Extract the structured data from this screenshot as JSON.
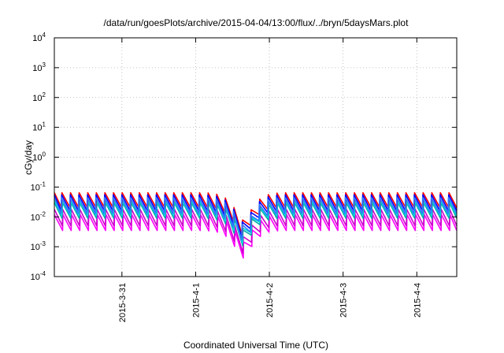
{
  "chart_data": {
    "type": "line",
    "title": "/data/run/goesPlots/archive/2015-04-04/13:00/flux/../bryn/5daysMars.plot",
    "xlabel": "Coordinated Universal Time (UTC)",
    "ylabel": "cGy/day",
    "yscale": "log",
    "ylim": [
      0.0001,
      10000
    ],
    "y_ticks": [
      {
        "base": "10",
        "exp": "-4",
        "value": 0.0001
      },
      {
        "base": "10",
        "exp": "-3",
        "value": 0.001
      },
      {
        "base": "10",
        "exp": "-2",
        "value": 0.01
      },
      {
        "base": "10",
        "exp": "-1",
        "value": 0.1
      },
      {
        "base": "10",
        "exp": "0",
        "value": 1
      },
      {
        "base": "10",
        "exp": "1",
        "value": 10
      },
      {
        "base": "10",
        "exp": "2",
        "value": 100
      },
      {
        "base": "10",
        "exp": "3",
        "value": 1000
      },
      {
        "base": "10",
        "exp": "4",
        "value": 10000
      }
    ],
    "x_start": "2015-03-30T02:00",
    "x_end": "2015-04-04T13:00",
    "x_ticks": [
      "2015-3-31",
      "2015-4-1",
      "2015-4-2",
      "2015-4-3",
      "2015-4-4"
    ],
    "grid": true,
    "legend": "none",
    "cycle_hours": 2.8,
    "dip": {
      "center": "2015-04-01T15:30",
      "min_factor": 0.12
    },
    "series": [
      {
        "color": "#ff00ff",
        "peak": 0.012,
        "trough": 0.0035
      },
      {
        "color": "#cc00cc",
        "peak": 0.018,
        "trough": 0.005
      },
      {
        "color": "#00aaaa",
        "peak": 0.03,
        "trough": 0.009
      },
      {
        "color": "#00dddd",
        "peak": 0.035,
        "trough": 0.011
      },
      {
        "color": "#ff0000",
        "peak": 0.065,
        "trough": 0.02
      },
      {
        "color": "#0000ff",
        "peak": 0.055,
        "trough": 0.016
      },
      {
        "color": "#3377ff",
        "peak": 0.045,
        "trough": 0.013
      }
    ]
  }
}
